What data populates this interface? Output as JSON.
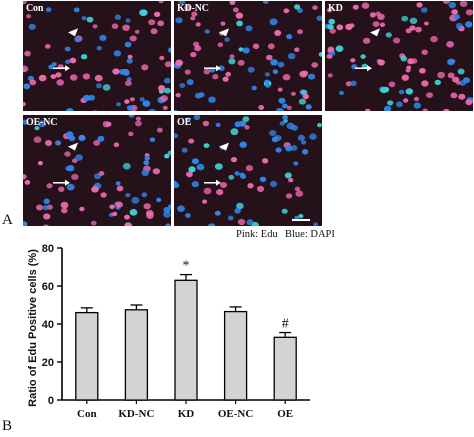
{
  "figure": {
    "panel_a_letter": "A",
    "panel_b_letter": "B",
    "legend_pink": "Pink: Edu",
    "legend_blue": "Blue: DAPI",
    "nucleus_colors": {
      "background": "#25111a",
      "dapi": "#2f86ea",
      "edu": "#f06ab0",
      "cyan": "#3ad6d6"
    },
    "micrographs": [
      {
        "label": "Con",
        "edu_fraction": 0.46
      },
      {
        "label": "KD-NC",
        "edu_fraction": 0.48
      },
      {
        "label": "KD",
        "edu_fraction": 0.63
      },
      {
        "label": "OE-NC",
        "edu_fraction": 0.47
      },
      {
        "label": "OE",
        "edu_fraction": 0.33
      }
    ]
  },
  "chart_data": {
    "type": "bar",
    "categories": [
      "Con",
      "KD-NC",
      "KD",
      "OE-NC",
      "OE"
    ],
    "values": [
      46,
      47.5,
      63,
      46.5,
      33
    ],
    "errors": [
      2.5,
      2.5,
      3,
      2.5,
      2.5
    ],
    "annotations": [
      "",
      "",
      "*",
      "",
      "#"
    ],
    "ylabel": "Ratio of Edu Positive cells (%)",
    "xlabel": "",
    "title": "",
    "ylim": [
      0,
      80
    ],
    "yticks": [
      0,
      20,
      40,
      60,
      80
    ],
    "bar_color": "#d3d3d3",
    "grid": false
  }
}
